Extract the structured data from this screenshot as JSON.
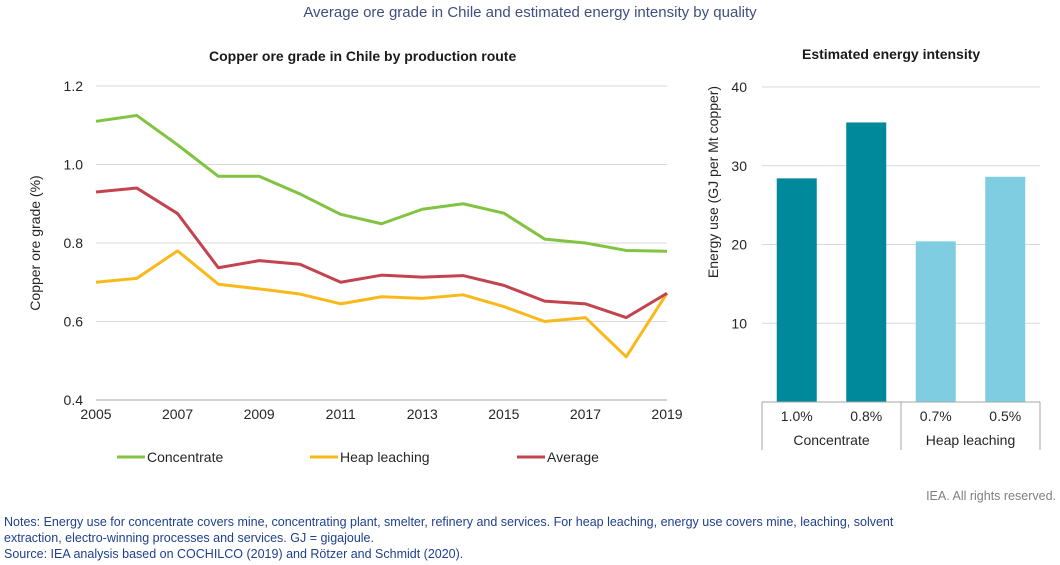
{
  "figure": {
    "title": "Average ore grade in Chile and estimated energy intensity by quality",
    "rights": "IEA. All rights reserved.",
    "notes": [
      "Notes: Energy use for concentrate covers mine, concentrating plant, smelter, refinery and services. For heap leaching, energy use covers mine, leaching, solvent",
      "extraction, electro-winning processes and services. GJ = gigajoule.",
      "Source: IEA analysis based on COCHILCO (2019) and Rötzer and Schmidt (2020)."
    ]
  },
  "chart_data": [
    {
      "type": "line",
      "title": "Copper ore grade in Chile by production route",
      "xlabel": "",
      "ylabel": "Copper ore grade (%)",
      "x": [
        2005,
        2006,
        2007,
        2008,
        2009,
        2010,
        2011,
        2012,
        2013,
        2014,
        2015,
        2016,
        2017,
        2018,
        2019
      ],
      "xticks": [
        "2005",
        "2007",
        "2009",
        "2011",
        "2013",
        "2015",
        "2017",
        "2019"
      ],
      "xlim": [
        2005,
        2019
      ],
      "ylim": [
        0.4,
        1.2
      ],
      "yticks": [
        "0.4",
        "0.6",
        "0.8",
        "1.0",
        "1.2"
      ],
      "grid": true,
      "legend_position": "bottom",
      "series": [
        {
          "name": "Concentrate",
          "color": "#82c341",
          "values": [
            1.11,
            1.125,
            1.05,
            0.97,
            0.97,
            0.925,
            0.873,
            0.849,
            0.886,
            0.9,
            0.876,
            0.81,
            0.8,
            0.781,
            0.779
          ]
        },
        {
          "name": "Heap leaching",
          "color": "#f9b91a",
          "values": [
            0.7,
            0.71,
            0.78,
            0.695,
            0.683,
            0.67,
            0.645,
            0.663,
            0.659,
            0.668,
            0.638,
            0.6,
            0.61,
            0.51,
            0.672
          ]
        },
        {
          "name": "Average",
          "color": "#c3444f",
          "values": [
            0.93,
            0.94,
            0.875,
            0.737,
            0.755,
            0.746,
            0.7,
            0.718,
            0.713,
            0.717,
            0.692,
            0.652,
            0.645,
            0.61,
            0.672
          ]
        }
      ]
    },
    {
      "type": "bar",
      "title": "Estimated energy intensity",
      "xlabel": "",
      "ylabel": "Energy use (GJ per Mt copper)",
      "categories": [
        "1.0%",
        "0.8%",
        "0.7%",
        "0.5%"
      ],
      "groups": [
        {
          "name": "Concentrate",
          "categories": [
            "1.0%",
            "0.8%"
          ]
        },
        {
          "name": "Heap leaching",
          "categories": [
            "0.7%",
            "0.5%"
          ]
        }
      ],
      "values": [
        28.4,
        35.5,
        20.4,
        28.6
      ],
      "colors": [
        "#00889b",
        "#00889b",
        "#7fcde0",
        "#7fcde0"
      ],
      "ylim": [
        0,
        40
      ],
      "yticks": [
        "10",
        "20",
        "30",
        "40"
      ],
      "grid": true
    }
  ]
}
